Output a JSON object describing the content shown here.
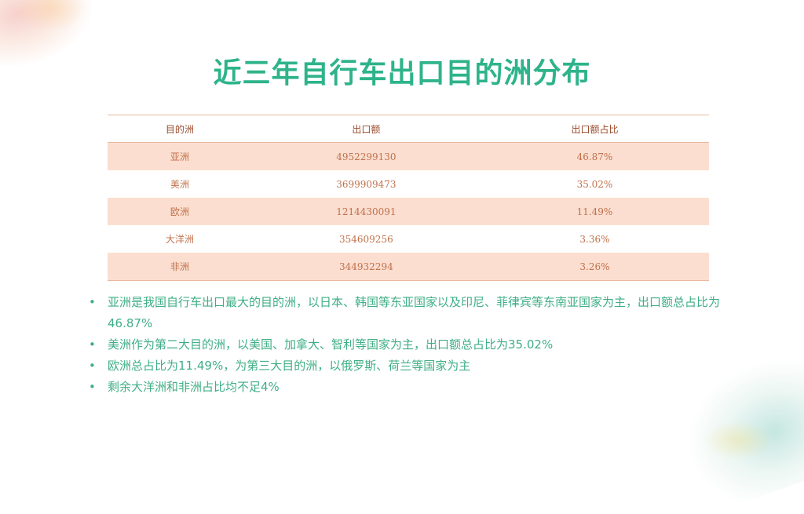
{
  "slide": {
    "title": "近三年自行车出口目的洲分布"
  },
  "table": {
    "headers": [
      "目的洲",
      "出口额",
      "出口额占比"
    ],
    "rows": [
      [
        "亚洲",
        "4952299130",
        "46.87%"
      ],
      [
        "美洲",
        "3699909473",
        "35.02%"
      ],
      [
        "欧洲",
        "1214430091",
        "11.49%"
      ],
      [
        "大洋洲",
        "354609256",
        "3.36%"
      ],
      [
        "非洲",
        "344932294",
        "3.26%"
      ]
    ]
  },
  "bullets": [
    "亚洲是我国自行车出口最大的目的洲，以日本、韩国等东亚国家以及印尼、菲律宾等东南亚国家为主，出口额总占比为46.87%",
    "美洲作为第二大目的洲，以美国、加拿大、智利等国家为主，出口额总占比为35.02%",
    "欧洲总占比为11.49%，为第三大目的洲，以俄罗斯、荷兰等国家为主",
    "剩余大洋洲和非洲占比均不足4%"
  ],
  "bullet_glyph": "•",
  "colors": {
    "title": "#2eb38a",
    "table_text": "#c0704a",
    "table_stripe": "#fbded0",
    "bullet_text": "#3fae86"
  }
}
